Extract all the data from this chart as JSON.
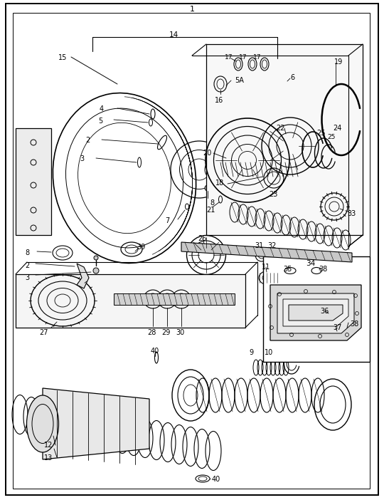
{
  "bg_color": "#ffffff",
  "line_color": "#000000",
  "text_color": "#000000",
  "fig_width": 5.4,
  "fig_height": 7.02,
  "dpi": 100,
  "title": "1",
  "label_14": "14",
  "label_15": "15",
  "label_5A": "5A",
  "label_6": "6",
  "label_4": "4",
  "label_5": "5",
  "label_2": "2",
  "label_3": "3",
  "label_18": "18",
  "label_7": "7",
  "label_8": "8",
  "label_2b": "2",
  "label_3b": "3",
  "label_39": "39",
  "label_17": "17",
  "label_16": "16",
  "label_19": "19",
  "label_22": "22",
  "label_20": "20",
  "label_25": "25",
  "label_24": "24",
  "label_23": "23",
  "label_21": "21",
  "label_33": "33",
  "label_26": "26",
  "label_31": "31",
  "label_32": "32",
  "label_27": "27",
  "label_28": "28",
  "label_29": "29",
  "label_30": "30",
  "label_11": "11",
  "label_34": "34",
  "label_35": "35",
  "label_38": "38",
  "label_37": "37",
  "label_36": "36",
  "label_9": "9",
  "label_10": "10",
  "label_40a": "40",
  "label_12": "12",
  "label_13": "13",
  "label_40b": "40",
  "label_8b": "8"
}
